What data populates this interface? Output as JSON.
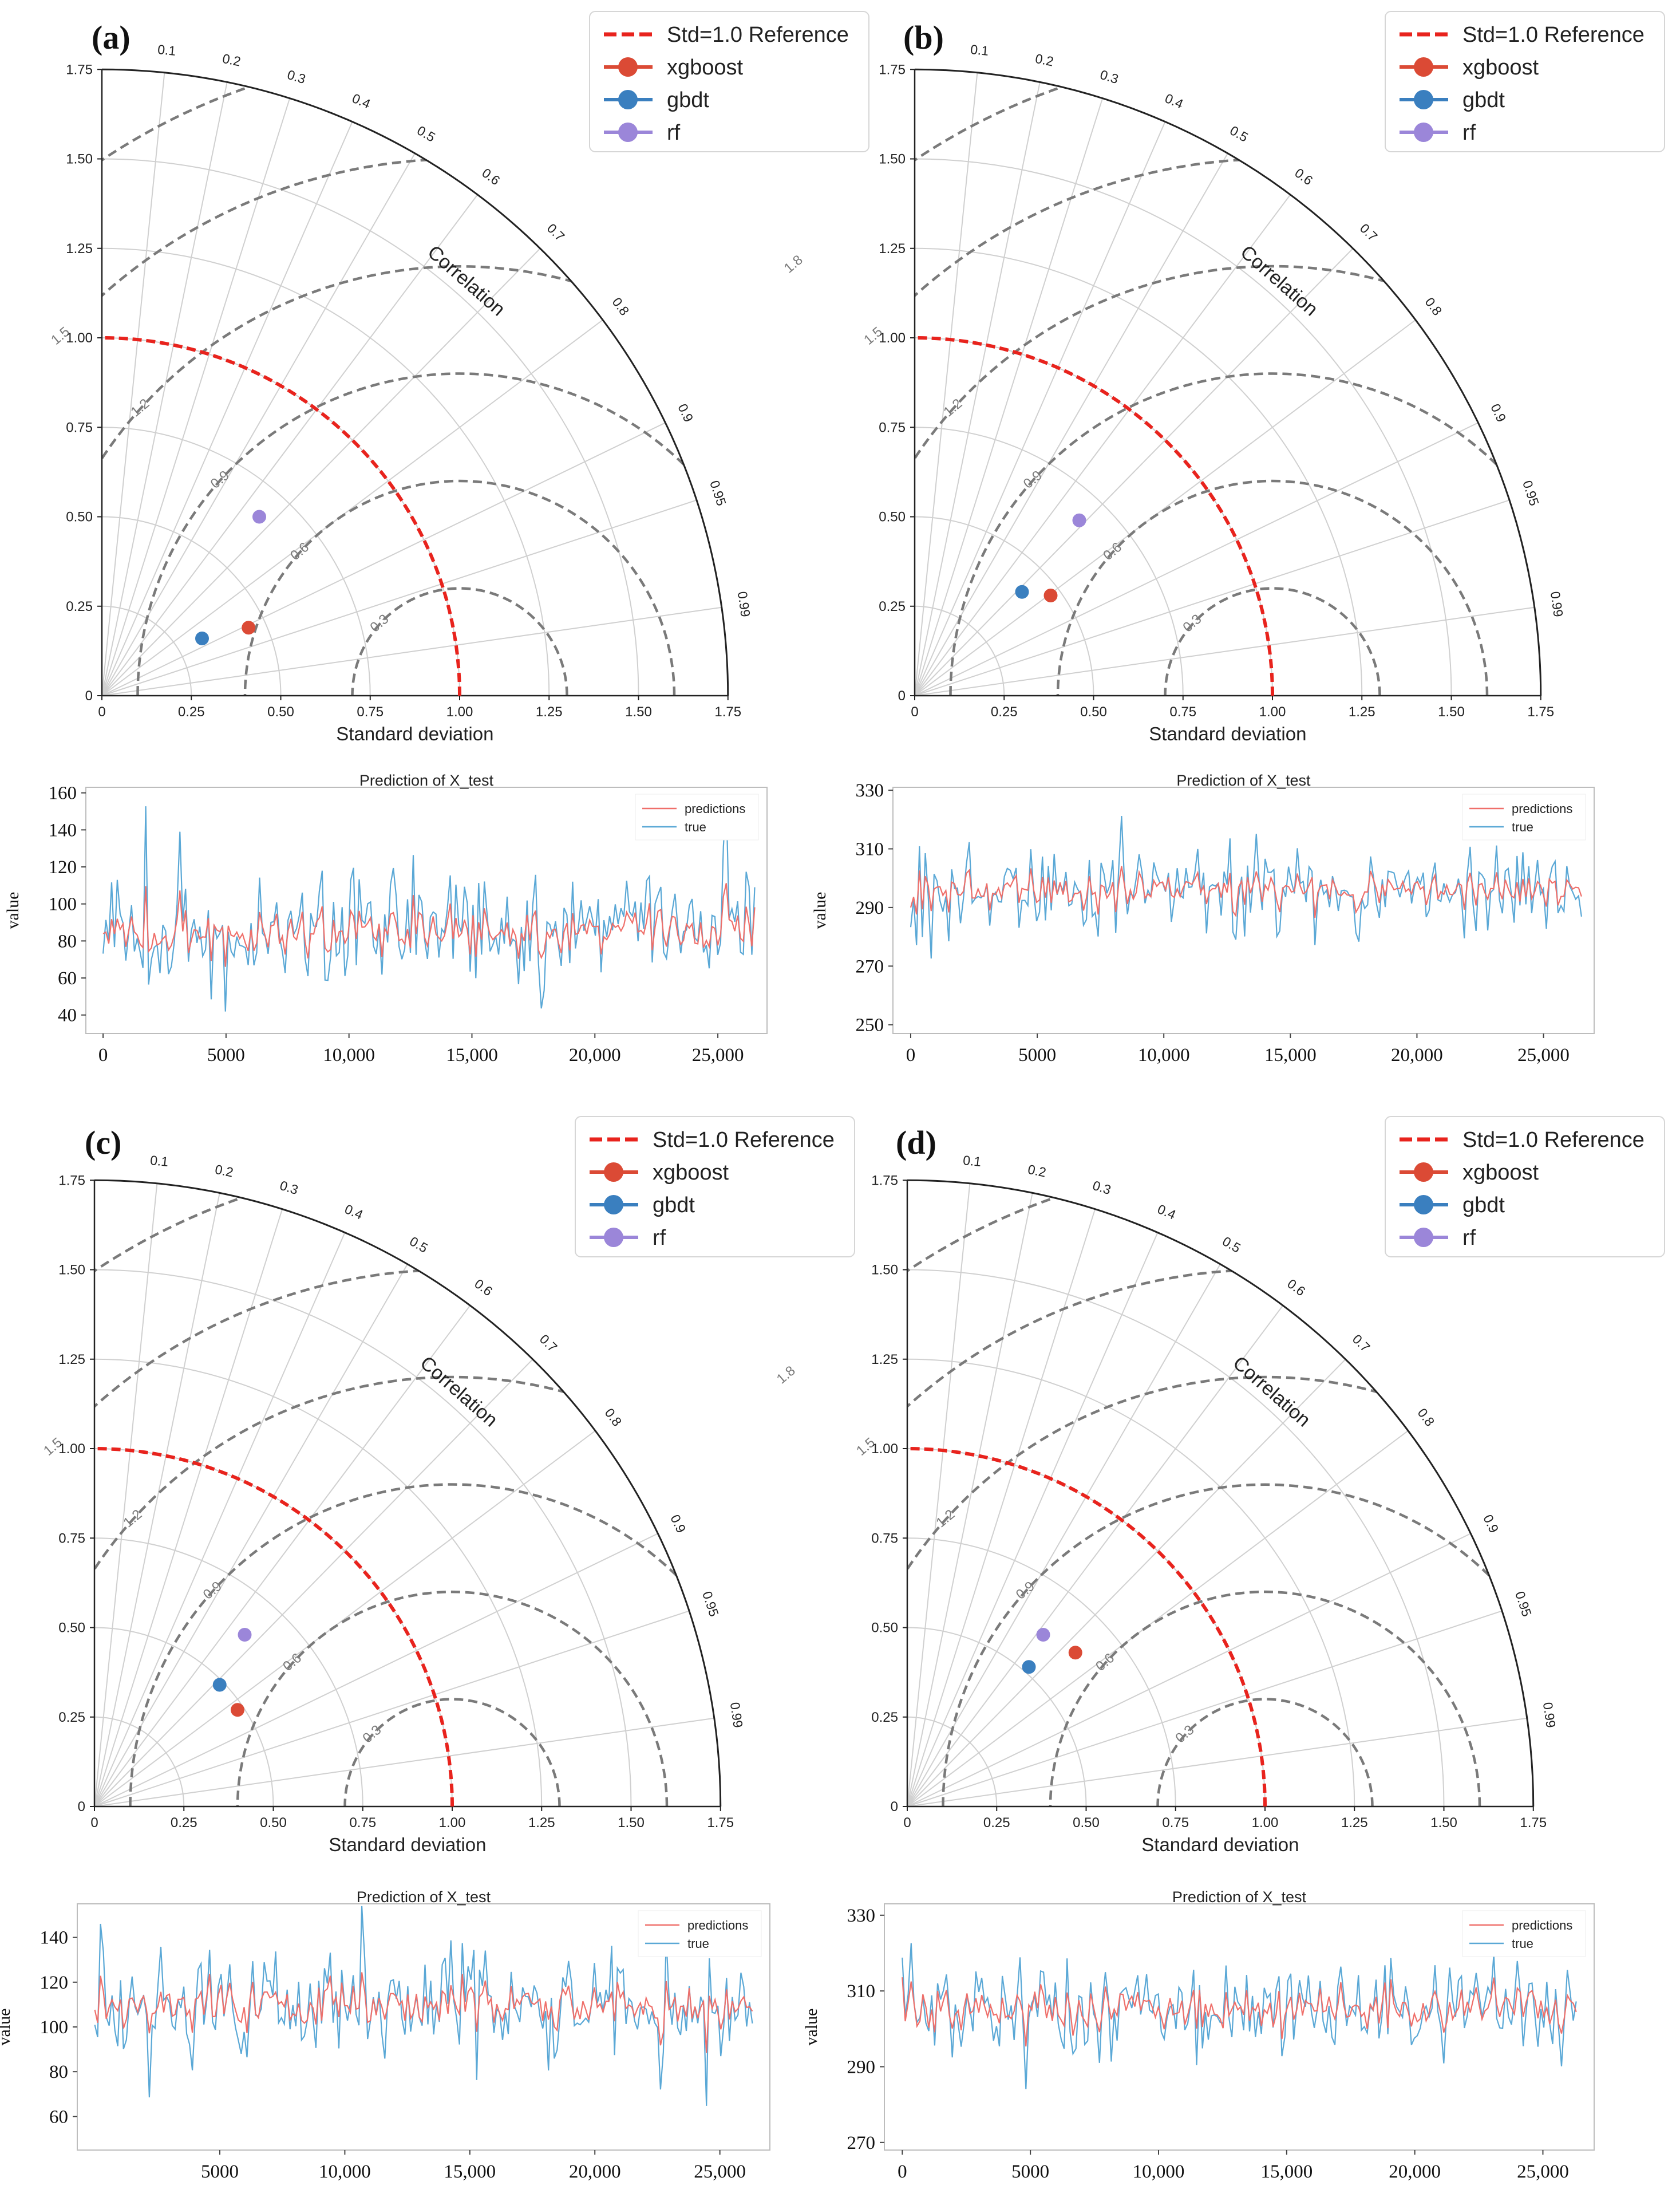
{
  "colors": {
    "reference": "#e8231d",
    "xgboost": "#db4a35",
    "gbdt": "#3a7fbf",
    "rf": "#9b86d9",
    "rms_contour": "#7a7a7a",
    "grid": "#d0d0d0",
    "predictions_line": "#ef6f6a",
    "true_line": "#5aa8d6"
  },
  "chart_data": [
    {
      "type": "scatter",
      "subtype": "taylor-diagram",
      "panel": "(a)",
      "xlabel": "Standard deviation",
      "arc_label": "Correlation",
      "std_range": [
        0,
        1.75
      ],
      "std_ticks": [
        "0",
        "0.25",
        "0.50",
        "0.75",
        "1.00",
        "1.25",
        "1.50",
        "1.75"
      ],
      "correlation_ticks": [
        "0.1",
        "0.2",
        "0.3",
        "0.4",
        "0.5",
        "0.6",
        "0.7",
        "0.8",
        "0.9",
        "0.95",
        "0.99"
      ],
      "rms_contour_labels": [
        "0.3",
        "0.6",
        "0.9",
        "1.2",
        "1.5",
        "1.8"
      ],
      "reference_std": 1.0,
      "legend": [
        "Std=1.0 Reference",
        "xgboost",
        "gbdt",
        "rf"
      ],
      "points": [
        {
          "name": "xgboost",
          "x": 0.41,
          "y": 0.19
        },
        {
          "name": "gbdt",
          "x": 0.28,
          "y": 0.16
        },
        {
          "name": "rf",
          "x": 0.44,
          "y": 0.5
        }
      ]
    },
    {
      "type": "scatter",
      "subtype": "taylor-diagram",
      "panel": "(b)",
      "xlabel": "Standard deviation",
      "arc_label": "Correlation",
      "std_range": [
        0,
        1.75
      ],
      "std_ticks": [
        "0",
        "0.25",
        "0.50",
        "0.75",
        "1.00",
        "1.25",
        "1.50",
        "1.75"
      ],
      "correlation_ticks": [
        "0.1",
        "0.2",
        "0.3",
        "0.4",
        "0.5",
        "0.6",
        "0.7",
        "0.8",
        "0.9",
        "0.95",
        "0.99"
      ],
      "rms_contour_labels": [
        "0.3",
        "0.6",
        "0.9",
        "1.2",
        "1.5",
        "1.8"
      ],
      "reference_std": 1.0,
      "legend": [
        "Std=1.0 Reference",
        "xgboost",
        "gbdt",
        "rf"
      ],
      "points": [
        {
          "name": "xgboost",
          "x": 0.38,
          "y": 0.28
        },
        {
          "name": "gbdt",
          "x": 0.3,
          "y": 0.29
        },
        {
          "name": "rf",
          "x": 0.46,
          "y": 0.49
        }
      ]
    },
    {
      "type": "scatter",
      "subtype": "taylor-diagram",
      "panel": "(c)",
      "xlabel": "Standard deviation",
      "arc_label": "Correlation",
      "std_range": [
        0,
        1.75
      ],
      "std_ticks": [
        "0",
        "0.25",
        "0.50",
        "0.75",
        "1.00",
        "1.25",
        "1.50",
        "1.75"
      ],
      "correlation_ticks": [
        "0.1",
        "0.2",
        "0.3",
        "0.4",
        "0.5",
        "0.6",
        "0.7",
        "0.8",
        "0.9",
        "0.95",
        "0.99"
      ],
      "rms_contour_labels": [
        "0.3",
        "0.6",
        "0.9",
        "1.2",
        "1.5",
        "1.8"
      ],
      "reference_std": 1.0,
      "legend": [
        "Std=1.0 Reference",
        "xgboost",
        "gbdt",
        "rf"
      ],
      "points": [
        {
          "name": "xgboost",
          "x": 0.4,
          "y": 0.27
        },
        {
          "name": "gbdt",
          "x": 0.35,
          "y": 0.34
        },
        {
          "name": "rf",
          "x": 0.42,
          "y": 0.48
        }
      ]
    },
    {
      "type": "scatter",
      "subtype": "taylor-diagram",
      "panel": "(d)",
      "xlabel": "Standard deviation",
      "arc_label": "Correlation",
      "std_range": [
        0,
        1.75
      ],
      "std_ticks": [
        "0",
        "0.25",
        "0.50",
        "0.75",
        "1.00",
        "1.25",
        "1.50",
        "1.75"
      ],
      "correlation_ticks": [
        "0.1",
        "0.2",
        "0.3",
        "0.4",
        "0.5",
        "0.6",
        "0.7",
        "0.8",
        "0.9",
        "0.95",
        "0.99"
      ],
      "rms_contour_labels": [
        "0.3",
        "0.6",
        "0.9",
        "1.2",
        "1.5",
        "1.8"
      ],
      "reference_std": 1.0,
      "legend": [
        "Std=1.0 Reference",
        "xgboost",
        "gbdt",
        "rf"
      ],
      "points": [
        {
          "name": "xgboost",
          "x": 0.47,
          "y": 0.43
        },
        {
          "name": "gbdt",
          "x": 0.34,
          "y": 0.39
        },
        {
          "name": "rf",
          "x": 0.38,
          "y": 0.48
        }
      ]
    },
    {
      "type": "line",
      "panel": "(a)",
      "title": "Prediction of X_test",
      "ylabel": "value",
      "xlim": [
        -700,
        27000
      ],
      "ylim": [
        30,
        163
      ],
      "xticks": [
        "0",
        "5000",
        "10,000",
        "15,000",
        "20,000",
        "25,000"
      ],
      "xtick_values": [
        0,
        5000,
        10000,
        15000,
        20000,
        25000
      ],
      "yticks": [
        "40",
        "60",
        "80",
        "100",
        "120",
        "140",
        "160"
      ],
      "ytick_values": [
        40,
        60,
        80,
        100,
        120,
        140,
        160
      ],
      "legend": [
        "predictions",
        "true"
      ],
      "n_points": 230,
      "x_max": 26500,
      "series": [
        {
          "name": "predictions",
          "mean": 84,
          "amplitude": 10,
          "seed": 11
        },
        {
          "name": "true",
          "mean": 84,
          "amplitude": 26,
          "seed": 12
        }
      ]
    },
    {
      "type": "line",
      "panel": "(b)",
      "title": "Prediction of X_test",
      "ylabel": "value",
      "xlim": [
        -700,
        27000
      ],
      "ylim": [
        247,
        331
      ],
      "xticks": [
        "0",
        "5000",
        "10,000",
        "15,000",
        "20,000",
        "25,000"
      ],
      "xtick_values": [
        0,
        5000,
        10000,
        15000,
        20000,
        25000
      ],
      "yticks": [
        "250",
        "270",
        "290",
        "310",
        "330"
      ],
      "ytick_values": [
        250,
        270,
        290,
        310,
        330
      ],
      "legend": [
        "predictions",
        "true"
      ],
      "n_points": 230,
      "x_max": 26500,
      "series": [
        {
          "name": "predictions",
          "mean": 296,
          "amplitude": 5,
          "seed": 21
        },
        {
          "name": "true",
          "mean": 296,
          "amplitude": 12,
          "seed": 22
        }
      ]
    },
    {
      "type": "line",
      "panel": "(c)",
      "title": "Prediction of X_test",
      "ylabel": "value",
      "xlim": [
        -700,
        27000
      ],
      "ylim": [
        45,
        155
      ],
      "xticks": [
        "5000",
        "10,000",
        "15,000",
        "20,000",
        "25,000"
      ],
      "xtick_values": [
        5000,
        10000,
        15000,
        20000,
        25000
      ],
      "yticks": [
        "60",
        "80",
        "100",
        "120",
        "140"
      ],
      "ytick_values": [
        60,
        80,
        100,
        120,
        140
      ],
      "legend": [
        "predictions",
        "true"
      ],
      "n_points": 230,
      "x_max": 26300,
      "series": [
        {
          "name": "predictions",
          "mean": 110,
          "amplitude": 9,
          "seed": 31
        },
        {
          "name": "true",
          "mean": 110,
          "amplitude": 18,
          "seed": 32
        }
      ]
    },
    {
      "type": "line",
      "panel": "(d)",
      "title": "Prediction of X_test",
      "ylabel": "value",
      "xlim": [
        -700,
        27000
      ],
      "ylim": [
        268,
        333
      ],
      "xticks": [
        "0",
        "5000",
        "10,000",
        "15,000",
        "20,000",
        "25,000"
      ],
      "xtick_values": [
        0,
        5000,
        10000,
        15000,
        20000,
        25000
      ],
      "yticks": [
        "270",
        "290",
        "310",
        "330"
      ],
      "ytick_values": [
        270,
        290,
        310,
        330
      ],
      "legend": [
        "predictions",
        "true"
      ],
      "n_points": 230,
      "x_max": 26300,
      "series": [
        {
          "name": "predictions",
          "mean": 305,
          "amplitude": 7,
          "seed": 41
        },
        {
          "name": "true",
          "mean": 305,
          "amplitude": 11,
          "seed": 42
        }
      ]
    }
  ]
}
